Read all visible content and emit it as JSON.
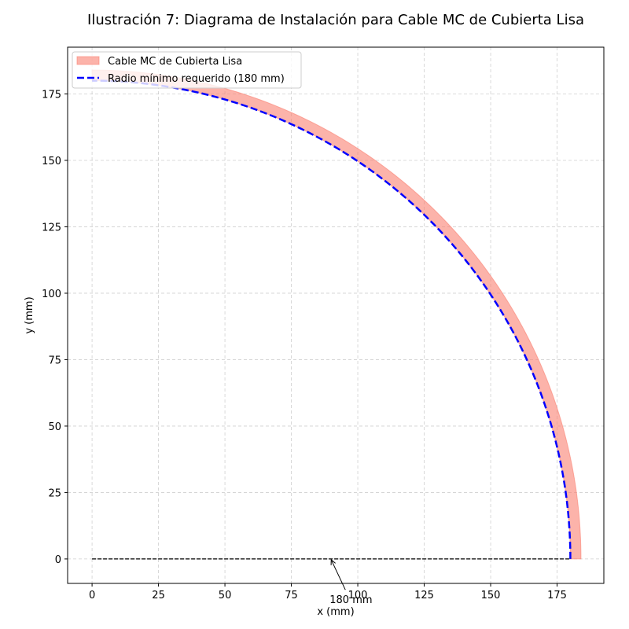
{
  "chart_data": {
    "type": "line",
    "title": "Ilustración 7: Diagrama de Instalación para Cable MC de Cubierta Lisa",
    "xlabel": "x (mm)",
    "ylabel": "y (mm)",
    "xlim": [
      -9.2,
      192.6
    ],
    "ylim": [
      -9.2,
      192.6
    ],
    "xticks": [
      0,
      25,
      50,
      75,
      100,
      125,
      150,
      175
    ],
    "yticks": [
      0,
      25,
      50,
      75,
      100,
      125,
      150,
      175
    ],
    "grid": true,
    "legend_position": "top-left",
    "series": [
      {
        "name": "Cable MC de Cubierta Lisa",
        "kind": "band",
        "inner_radius": 180,
        "outer_radius": 184,
        "angle_range_deg": [
          0,
          90
        ],
        "color": "#fa8072"
      },
      {
        "name": "Radio mínimo requerido (180 mm)",
        "kind": "arc",
        "radius": 180,
        "angle_range_deg": [
          0,
          90
        ],
        "color": "#0000ff",
        "style": "dashed"
      },
      {
        "kind": "baseline",
        "x": [
          0,
          180
        ],
        "y": [
          0,
          0
        ],
        "color": "#000000",
        "style": "dashed"
      }
    ],
    "annotations": [
      {
        "text": "180 mm",
        "arrow_to": [
          90,
          0
        ],
        "text_at": [
          90,
          -14
        ]
      }
    ]
  }
}
